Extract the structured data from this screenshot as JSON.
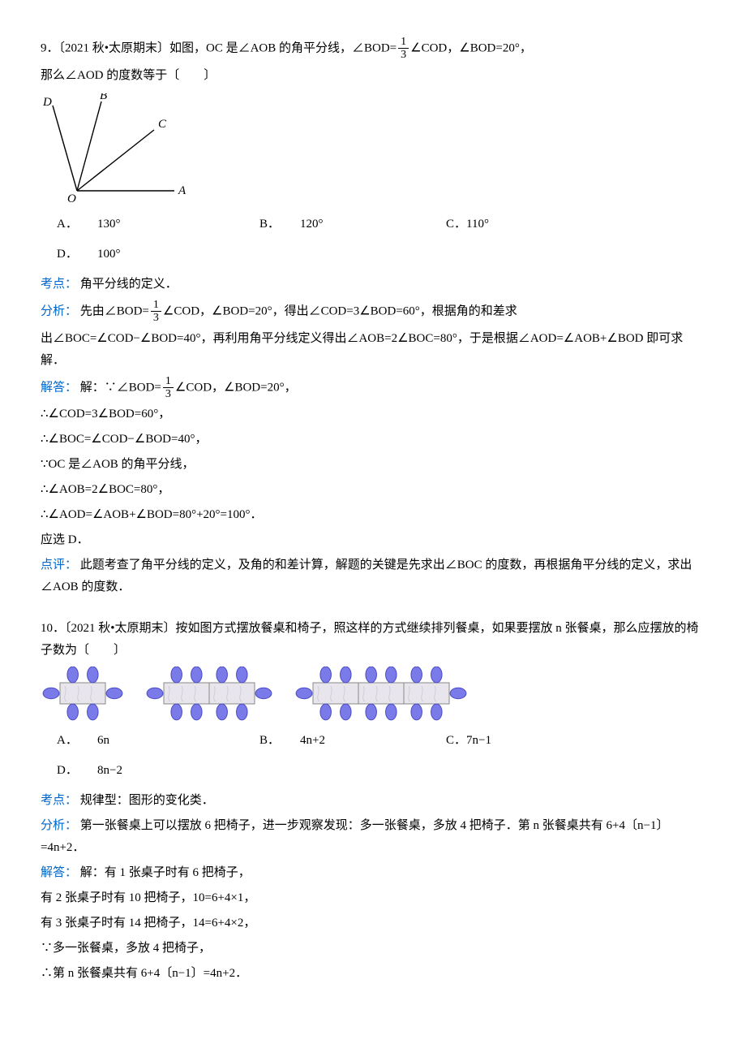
{
  "q9": {
    "stem_a": "9．〔2021 秋•太原期末〕如图，OC 是∠AOB 的角平分线，∠BOD=",
    "stem_b": "∠COD，∠BOD=20°，",
    "stem_c": "那么∠AOD 的度数等于〔　　〕",
    "frac": {
      "num": "1",
      "den": "3"
    },
    "diagram": {
      "labels": {
        "D": "D",
        "B": "B",
        "C": "C",
        "O": "O",
        "A": "A"
      },
      "line_color": "#000000",
      "stroke_width": 1.4
    },
    "choices": {
      "A": {
        "label": "A．",
        "val": "130°"
      },
      "B": {
        "label": "B．",
        "val": "120°"
      },
      "C": {
        "label": "C．",
        "val": "110°"
      },
      "D": {
        "label": "D．",
        "val": "100°"
      }
    },
    "kaodian_label": "考点：",
    "kaodian": "角平分线的定义．",
    "fenxi_label": "分析：",
    "fenxi_a": "先由∠BOD=",
    "fenxi_b": "∠COD，∠BOD=20°，得出∠COD=3∠BOD=60°，根据角的和差求",
    "fenxi_c": "出∠BOC=∠COD−∠BOD=40°，再利用角平分线定义得出∠AOB=2∠BOC=80°，于是根据∠AOD=∠AOB+∠BOD 即可求解．",
    "jieda_label": "解答：",
    "jieda_a": "解：∵∠BOD=",
    "jieda_b": "∠COD，∠BOD=20°，",
    "step1": "∴∠COD=3∠BOD=60°，",
    "step2": "∴∠BOC=∠COD−∠BOD=40°，",
    "step3": "∵OC 是∠AOB 的角平分线，",
    "step4": "∴∠AOB=2∠BOC=80°，",
    "step5": "∴∠AOD=∠AOB+∠BOD=80°+20°=100°．",
    "step6": "应选 D．",
    "dianping_label": "点评：",
    "dianping": "此题考查了角平分线的定义，及角的和差计算，解题的关键是先求出∠BOC 的度数，再根据角平分线的定义，求出∠AOB 的度数．"
  },
  "q10": {
    "stem": "10．〔2021 秋•太原期末〕按如图方式摆放餐桌和椅子，照这样的方式继续排列餐桌，如果要摆放 n 张餐桌，那么应摆放的椅子数为〔　　〕",
    "diagram": {
      "table_fill": "#e8e6ec",
      "table_stroke": "#888888",
      "chair_fill": "#7a7ae8",
      "chair_stroke": "#4a4ac8",
      "groups": [
        1,
        2,
        3
      ]
    },
    "choices": {
      "A": {
        "label": "A．",
        "val": "6n"
      },
      "B": {
        "label": "B．",
        "val": "4n+2"
      },
      "C": {
        "label": "C．",
        "val": "7n−1"
      },
      "D": {
        "label": "D．",
        "val": "8n−2"
      }
    },
    "kaodian_label": "考点：",
    "kaodian": "规律型：图形的变化类．",
    "fenxi_label": "分析：",
    "fenxi": "第一张餐桌上可以摆放 6 把椅子，进一步观察发现：多一张餐桌，多放 4 把椅子．第 n 张餐桌共有 6+4〔n−1〕=4n+2．",
    "jieda_label": "解答：",
    "jieda_a": "解：有 1 张桌子时有 6 把椅子，",
    "step1": "有 2 张桌子时有 10 把椅子，10=6+4×1，",
    "step2": "有 3 张桌子时有 14 把椅子，14=6+4×2，",
    "step3": "∵多一张餐桌，多放 4 把椅子，",
    "step4": "∴第 n 张餐桌共有 6+4〔n−1〕=4n+2．"
  }
}
